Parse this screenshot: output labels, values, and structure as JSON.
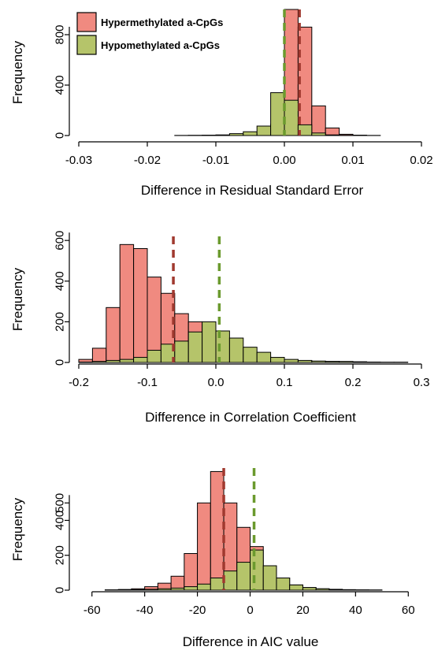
{
  "colors": {
    "hyper_fill": "#F08A80",
    "hypo_fill": "#B5C46A",
    "hyper_line": "#A0392F",
    "hypo_line": "#6B9A2E",
    "outline": "#000000"
  },
  "legend": {
    "placement": "top-left of first panel",
    "items": [
      {
        "label": "Hypermethylated a-CpGs",
        "color": "#F08A80"
      },
      {
        "label": "Hypomethylated a-CpGs",
        "color": "#B5C46A"
      }
    ]
  },
  "chart_data": [
    {
      "type": "bar",
      "title": "",
      "xlabel": "Difference in Residual Standard Error",
      "ylabel": "Frequency",
      "xlim": [
        -0.03,
        0.02
      ],
      "ylim": [
        0,
        1000
      ],
      "xticks": [
        "-0.03",
        "-0.02",
        "-0.01",
        "0.00",
        "0.01",
        "0.02"
      ],
      "xtick_values": [
        -0.03,
        -0.02,
        -0.01,
        0,
        0.01,
        0.02
      ],
      "yticks": [
        "0",
        "400",
        "800"
      ],
      "ytick_values": [
        0,
        400,
        800
      ],
      "bin_width": 0.002,
      "bin_starts": [
        -0.03,
        -0.028,
        -0.026,
        -0.024,
        -0.022,
        -0.02,
        -0.018,
        -0.016,
        -0.014,
        -0.012,
        -0.01,
        -0.008,
        -0.006,
        -0.004,
        -0.002,
        0,
        0.002,
        0.004,
        0.006,
        0.008,
        0.01,
        0.012,
        0.014,
        0.016,
        0.018
      ],
      "series": [
        {
          "name": "Hypermethylated a-CpGs",
          "values": [
            0,
            0,
            0,
            0,
            0,
            0,
            0,
            0,
            0,
            0,
            2,
            5,
            10,
            25,
            90,
            1010,
            860,
            235,
            60,
            10,
            3,
            1,
            0,
            0,
            0
          ]
        },
        {
          "name": "Hypomethylated a-CpGs",
          "values": [
            0,
            0,
            0,
            0,
            0,
            0,
            0,
            1,
            2,
            3,
            5,
            15,
            30,
            75,
            340,
            280,
            85,
            20,
            5,
            2,
            1,
            0,
            0,
            0,
            0
          ]
        }
      ],
      "vlines": [
        {
          "series": "Hypermethylated a-CpGs",
          "x": 0.0022
        },
        {
          "series": "Hypomethylated a-CpGs",
          "x": 0.0
        }
      ]
    },
    {
      "type": "bar",
      "title": "",
      "xlabel": "Difference in Correlation Coefficient",
      "ylabel": "Frequency",
      "xlim": [
        -0.2,
        0.3
      ],
      "ylim": [
        0,
        620
      ],
      "xticks": [
        "-0.2",
        "-0.1",
        "0.0",
        "0.1",
        "0.2",
        "0.3"
      ],
      "xtick_values": [
        -0.2,
        -0.1,
        0,
        0.1,
        0.2,
        0.3
      ],
      "yticks": [
        "0",
        "200",
        "400",
        "600"
      ],
      "ytick_values": [
        0,
        200,
        400,
        600
      ],
      "bin_width": 0.02,
      "bin_starts": [
        -0.2,
        -0.18,
        -0.16,
        -0.14,
        -0.12,
        -0.1,
        -0.08,
        -0.06,
        -0.04,
        -0.02,
        0,
        0.02,
        0.04,
        0.06,
        0.08,
        0.1,
        0.12,
        0.14,
        0.16,
        0.18,
        0.2,
        0.22,
        0.24,
        0.26,
        0.28
      ],
      "series": [
        {
          "name": "Hypermethylated a-CpGs",
          "values": [
            15,
            70,
            270,
            580,
            560,
            420,
            340,
            240,
            200,
            185,
            120,
            75,
            50,
            30,
            20,
            12,
            8,
            5,
            5,
            3,
            3,
            2,
            1,
            1,
            0
          ]
        },
        {
          "name": "Hypomethylated a-CpGs",
          "values": [
            2,
            5,
            10,
            15,
            25,
            60,
            90,
            105,
            150,
            200,
            155,
            120,
            75,
            50,
            25,
            15,
            10,
            7,
            5,
            5,
            3,
            2,
            1,
            1,
            0
          ]
        }
      ],
      "vlines": [
        {
          "series": "Hypermethylated a-CpGs",
          "x": -0.062
        },
        {
          "series": "Hypomethylated a-CpGs",
          "x": 0.005
        }
      ]
    },
    {
      "type": "bar",
      "title": "",
      "xlabel": "Difference in AIC value",
      "ylabel": "Frequency",
      "xlim": [
        -65,
        65
      ],
      "ylim": [
        0,
        700
      ],
      "xticks": [
        "-60",
        "-40",
        "-20",
        "0",
        "20",
        "40",
        "60"
      ],
      "xtick_values": [
        -60,
        -40,
        -20,
        0,
        20,
        40,
        60
      ],
      "yticks": [
        "0",
        "200",
        "400",
        "500"
      ],
      "ytick_values": [
        0,
        200,
        400,
        500
      ],
      "bin_width": 5,
      "bin_starts": [
        -65,
        -60,
        -55,
        -50,
        -45,
        -40,
        -35,
        -30,
        -25,
        -20,
        -15,
        -10,
        -5,
        0,
        5,
        10,
        15,
        20,
        25,
        30,
        35,
        40,
        45,
        50,
        55,
        60
      ],
      "series": [
        {
          "name": "Hypermethylated a-CpGs",
          "values": [
            0,
            0,
            2,
            4,
            8,
            20,
            40,
            80,
            210,
            500,
            680,
            500,
            360,
            250,
            140,
            70,
            30,
            15,
            8,
            5,
            3,
            2,
            1,
            0,
            0,
            0
          ]
        },
        {
          "name": "Hypomethylated a-CpGs",
          "values": [
            0,
            0,
            1,
            2,
            3,
            5,
            8,
            12,
            20,
            35,
            70,
            110,
            160,
            230,
            140,
            70,
            30,
            15,
            8,
            4,
            2,
            1,
            1,
            0,
            0,
            0
          ]
        }
      ],
      "vlines": [
        {
          "series": "Hypermethylated a-CpGs",
          "x": -10
        },
        {
          "series": "Hypomethylated a-CpGs",
          "x": 1.5
        }
      ]
    }
  ]
}
